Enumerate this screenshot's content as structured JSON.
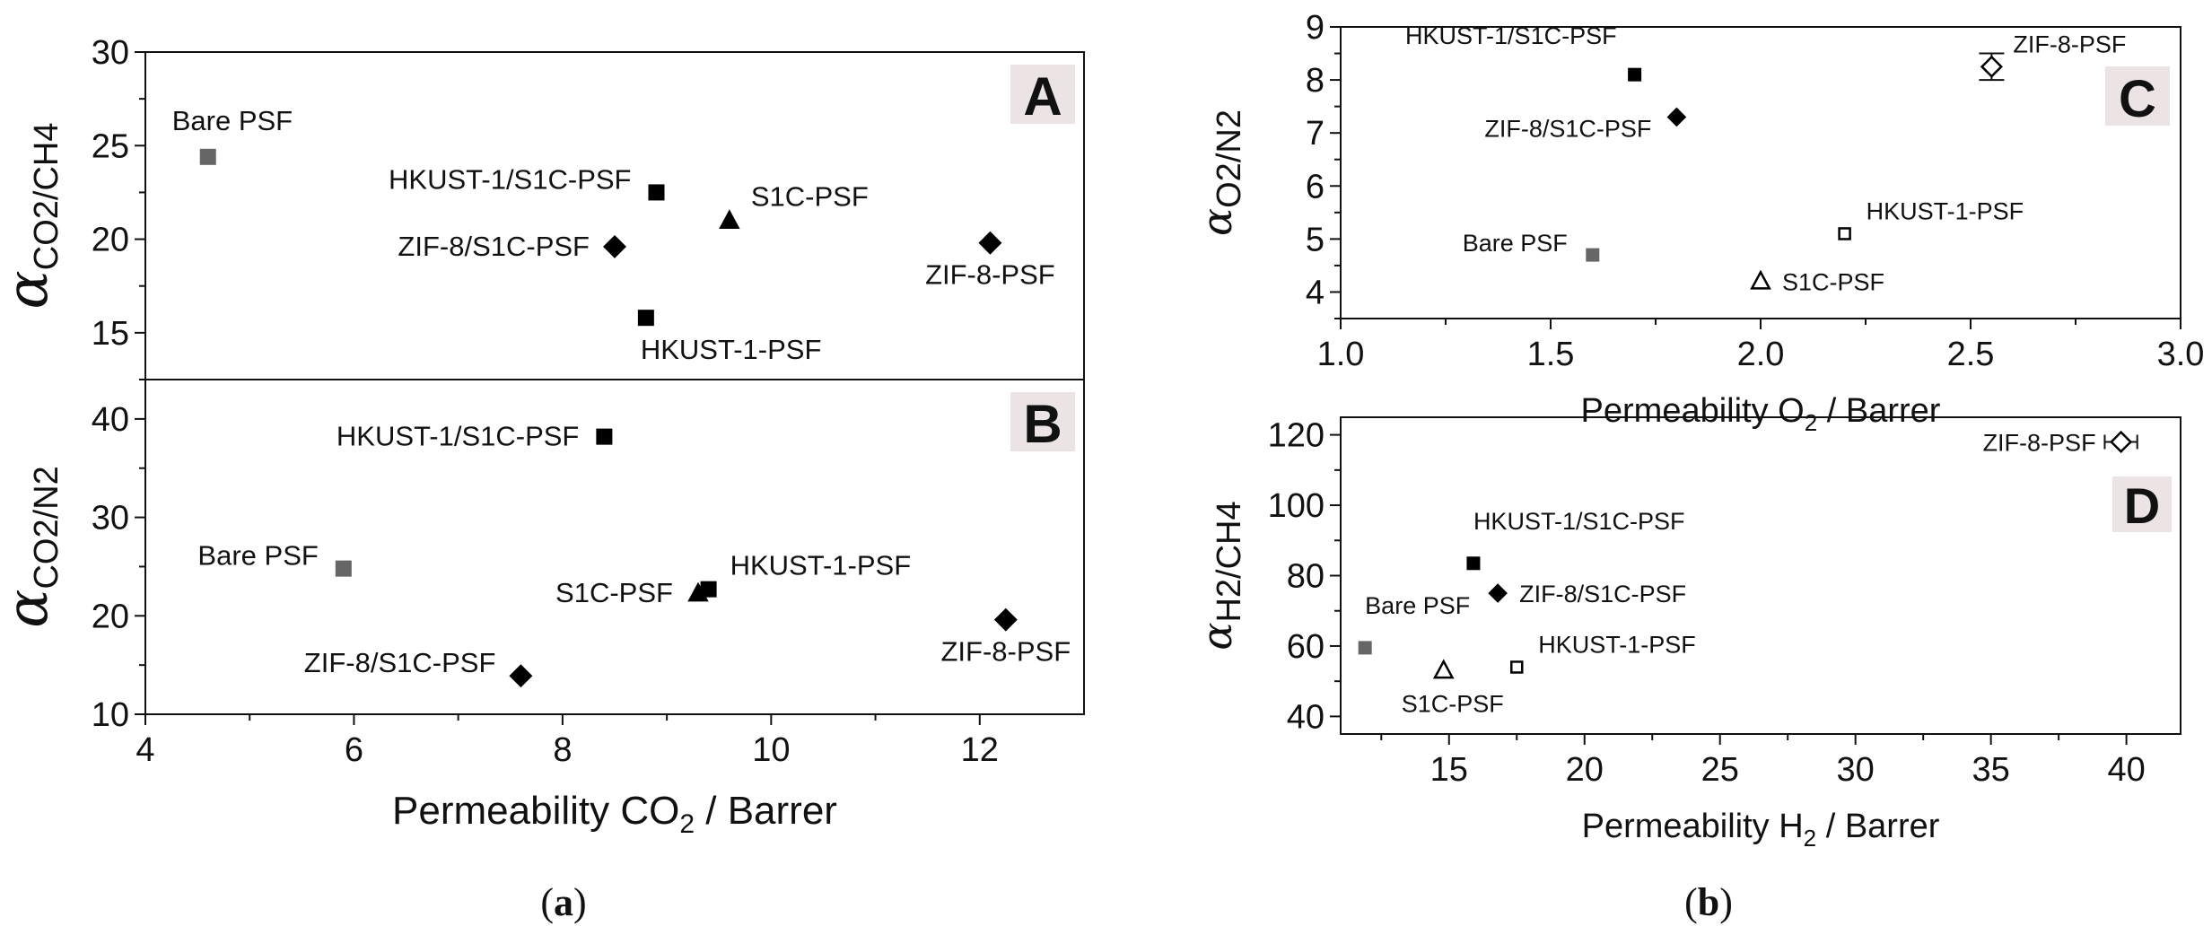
{
  "captions": {
    "left": "a",
    "right": "b"
  },
  "chart_data": [
    {
      "panel": "A",
      "type": "scatter",
      "ylabel_symbol": "α",
      "ylabel_sub": "CO2/CH4",
      "xlim": [
        4,
        13
      ],
      "ylim": [
        12.5,
        30
      ],
      "yticks": [
        15,
        20,
        25,
        30
      ],
      "points": [
        {
          "name": "Bare PSF",
          "x": 4.6,
          "y": 24.4,
          "marker": "square",
          "color": "#666666",
          "label_pos": "above"
        },
        {
          "name": "HKUST-1/S1C-PSF",
          "x": 8.9,
          "y": 22.5,
          "marker": "square",
          "color": "#000000",
          "label_pos": "left-up"
        },
        {
          "name": "S1C-PSF",
          "x": 9.6,
          "y": 21.0,
          "marker": "triangle",
          "color": "#000000",
          "label_pos": "right-up"
        },
        {
          "name": "ZIF-8/S1C-PSF",
          "x": 8.5,
          "y": 19.6,
          "marker": "diamond",
          "color": "#000000",
          "label_pos": "left"
        },
        {
          "name": "ZIF-8-PSF",
          "x": 12.1,
          "y": 19.8,
          "marker": "diamond",
          "color": "#000000",
          "label_pos": "below"
        },
        {
          "name": "HKUST-1-PSF",
          "x": 8.8,
          "y": 15.8,
          "marker": "square",
          "color": "#000000",
          "label_pos": "below-right"
        }
      ]
    },
    {
      "panel": "B",
      "type": "scatter",
      "ylabel_symbol": "α",
      "ylabel_sub": "CO2/N2",
      "xlabel_text": "Permeability CO",
      "xlabel_sub": "2",
      "xlabel_tail": " / Barrer",
      "xlim": [
        4,
        13
      ],
      "ylim": [
        10,
        44
      ],
      "xticks": [
        4,
        6,
        8,
        10,
        12
      ],
      "yticks": [
        10,
        20,
        30,
        40
      ],
      "points": [
        {
          "name": "HKUST-1/S1C-PSF",
          "x": 8.4,
          "y": 38.2,
          "marker": "square",
          "color": "#000000",
          "label_pos": "left"
        },
        {
          "name": "Bare PSF",
          "x": 5.9,
          "y": 24.8,
          "marker": "square",
          "color": "#666666",
          "label_pos": "left-up"
        },
        {
          "name": "HKUST-1-PSF",
          "x": 9.4,
          "y": 22.7,
          "marker": "square",
          "color": "#000000",
          "label_pos": "right-up"
        },
        {
          "name": "S1C-PSF",
          "x": 9.3,
          "y": 22.3,
          "marker": "triangle",
          "color": "#000000",
          "label_pos": "left"
        },
        {
          "name": "ZIF-8/S1C-PSF",
          "x": 7.6,
          "y": 13.9,
          "marker": "diamond",
          "color": "#000000",
          "label_pos": "left-up"
        },
        {
          "name": "ZIF-8-PSF",
          "x": 12.25,
          "y": 19.6,
          "marker": "diamond",
          "color": "#000000",
          "label_pos": "below"
        }
      ]
    },
    {
      "panel": "C",
      "type": "scatter",
      "ylabel_symbol": "α",
      "ylabel_sub": "O2/N2",
      "xlabel_text": "Permeability O",
      "xlabel_sub": "2",
      "xlabel_tail": " / Barrer",
      "xlim": [
        1.0,
        3.0
      ],
      "ylim": [
        3.5,
        9
      ],
      "xticks": [
        "1.0",
        "1.5",
        "2.0",
        "2.5",
        "3.0"
      ],
      "yticks": [
        4,
        5,
        6,
        7,
        8,
        9
      ],
      "points": [
        {
          "name": "HKUST-1/S1C-PSF",
          "x": 1.7,
          "y": 8.1,
          "marker": "square",
          "color": "#000000",
          "label_pos": "above-left"
        },
        {
          "name": "ZIF-8-PSF",
          "x": 2.55,
          "y": 8.25,
          "marker": "diamond-open",
          "color": "#000000",
          "err": 0.25,
          "label_pos": "right-up"
        },
        {
          "name": "ZIF-8/S1C-PSF",
          "x": 1.8,
          "y": 7.3,
          "marker": "diamond",
          "color": "#000000",
          "label_pos": "left-down"
        },
        {
          "name": "HKUST-1-PSF",
          "x": 2.2,
          "y": 5.1,
          "marker": "square-open",
          "color": "#000000",
          "label_pos": "right-up"
        },
        {
          "name": "Bare PSF",
          "x": 1.6,
          "y": 4.7,
          "marker": "square",
          "color": "#666666",
          "label_pos": "left-up"
        },
        {
          "name": "S1C-PSF",
          "x": 2.0,
          "y": 4.2,
          "marker": "triangle-open",
          "color": "#000000",
          "label_pos": "right"
        }
      ]
    },
    {
      "panel": "D",
      "type": "scatter",
      "ylabel_symbol": "α",
      "ylabel_sub": "H2/CH4",
      "xlabel_text": "Permeability H",
      "xlabel_sub": "2",
      "xlabel_tail": " / Barrer",
      "xlim": [
        11,
        42
      ],
      "ylim": [
        35,
        125
      ],
      "xticks": [
        15,
        20,
        25,
        30,
        35,
        40
      ],
      "yticks": [
        40,
        60,
        80,
        100,
        120
      ],
      "points": [
        {
          "name": "ZIF-8-PSF",
          "x": 39.8,
          "y": 118,
          "marker": "diamond-open",
          "color": "#000000",
          "errx": 0.6,
          "label_pos": "left"
        },
        {
          "name": "HKUST-1/S1C-PSF",
          "x": 15.9,
          "y": 83.5,
          "marker": "square",
          "color": "#000000",
          "label_pos": "above-right"
        },
        {
          "name": "ZIF-8/S1C-PSF",
          "x": 16.8,
          "y": 75,
          "marker": "diamond",
          "color": "#000000",
          "label_pos": "right"
        },
        {
          "name": "Bare PSF",
          "x": 11.9,
          "y": 59.5,
          "marker": "square",
          "color": "#666666",
          "label_pos": "above-right"
        },
        {
          "name": "HKUST-1-PSF",
          "x": 17.5,
          "y": 54,
          "marker": "square-open",
          "color": "#000000",
          "label_pos": "right-up"
        },
        {
          "name": "S1C-PSF",
          "x": 14.8,
          "y": 53,
          "marker": "triangle-open",
          "color": "#000000",
          "label_pos": "below-left"
        }
      ]
    }
  ]
}
